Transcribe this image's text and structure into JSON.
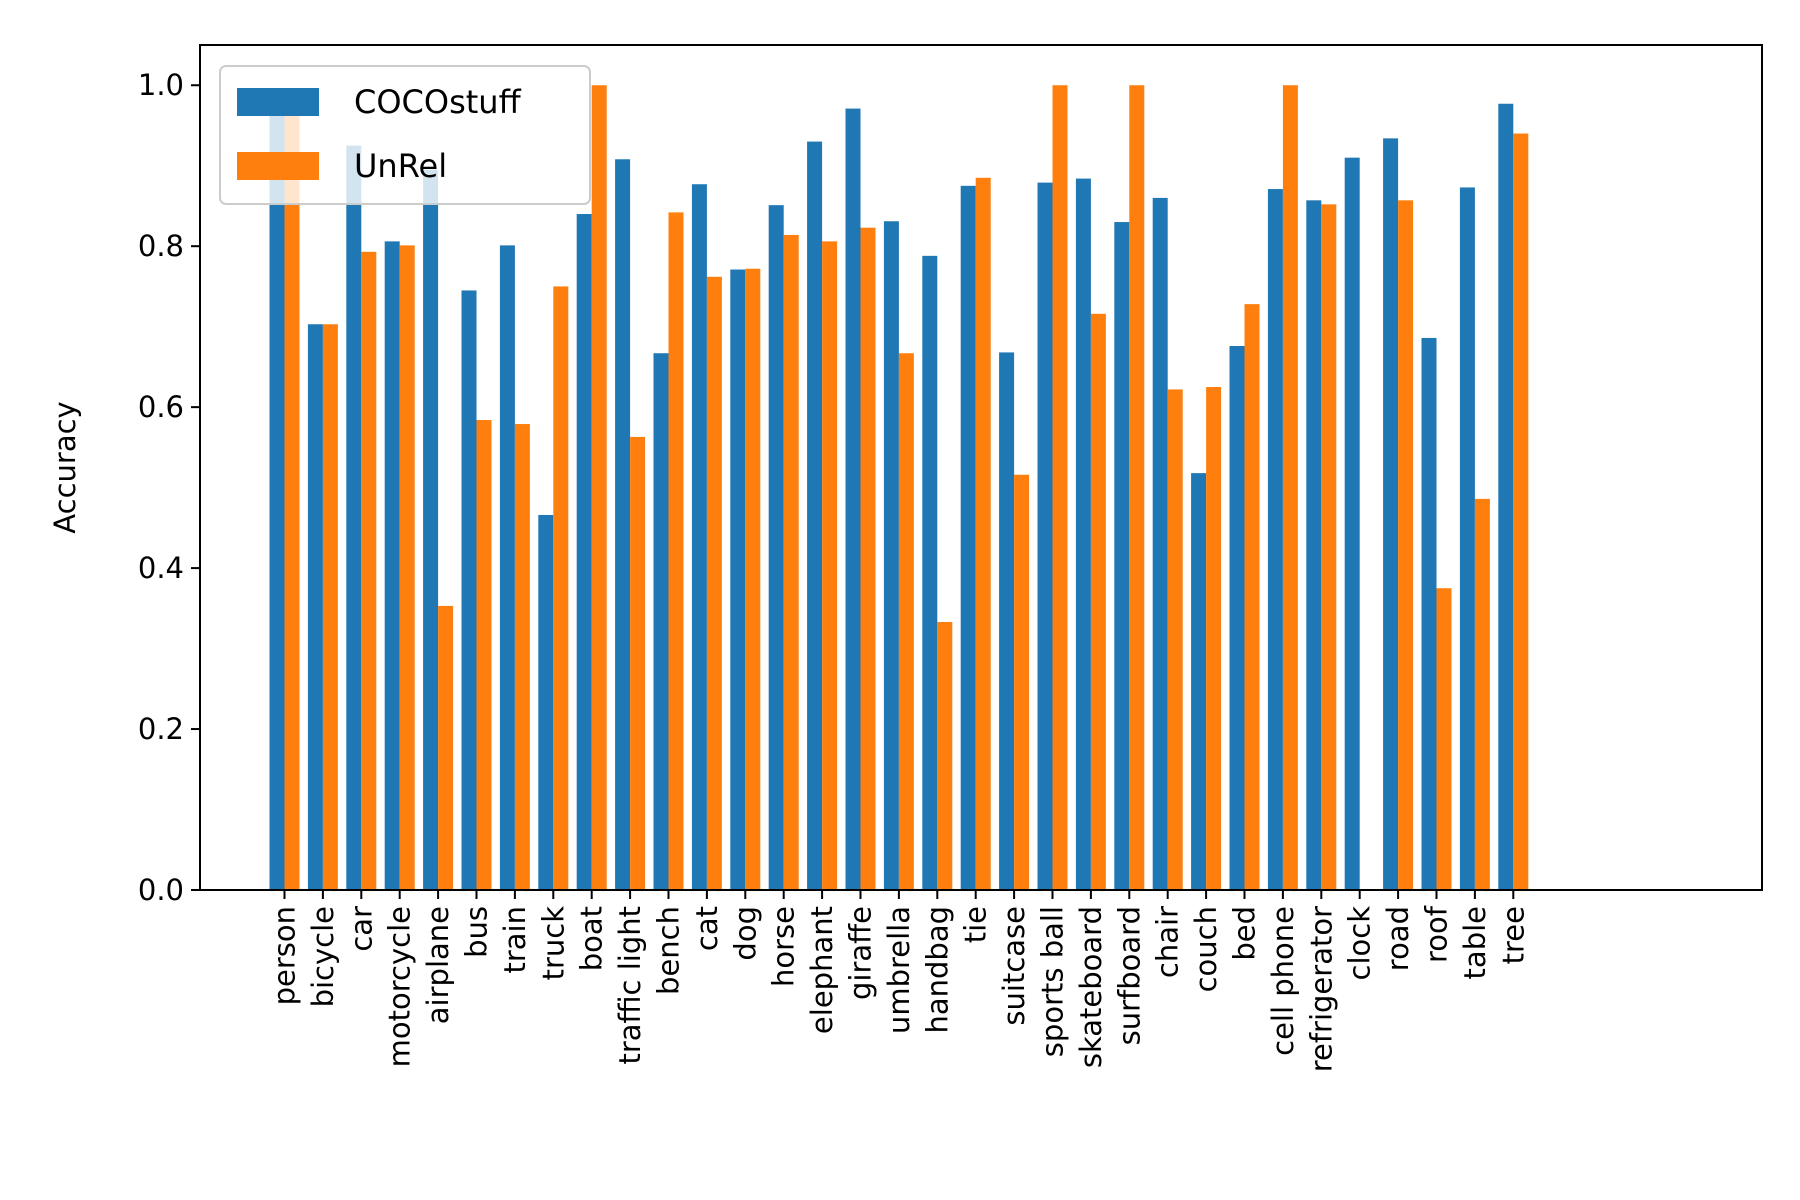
{
  "chart_data": {
    "type": "bar",
    "title": "",
    "xlabel": "",
    "ylabel": "Accuracy",
    "ylim": [
      0,
      1.05
    ],
    "yticks": [
      "0.0",
      "0.2",
      "0.4",
      "0.6",
      "0.8",
      "1.0"
    ],
    "grid": false,
    "legend_position": "top-left",
    "categories": [
      "person",
      "bicycle",
      "car",
      "motorcycle",
      "airplane",
      "bus",
      "train",
      "truck",
      "boat",
      "traffic light",
      "bench",
      "cat",
      "dog",
      "horse",
      "elephant",
      "giraffe",
      "umbrella",
      "handbag",
      "tie",
      "suitcase",
      "sports ball",
      "skateboard",
      "surfboard",
      "chair",
      "couch",
      "bed",
      "cell phone",
      "refrigerator",
      "clock",
      "road",
      "roof",
      "table",
      "tree"
    ],
    "series": [
      {
        "name": "COCOstuff",
        "color": "#1f77b4",
        "values": [
          0.975,
          0.703,
          0.925,
          0.806,
          0.895,
          0.745,
          0.801,
          0.466,
          0.84,
          0.908,
          0.667,
          0.877,
          0.771,
          0.851,
          0.93,
          0.971,
          0.831,
          0.788,
          0.875,
          0.668,
          0.879,
          0.884,
          0.83,
          0.86,
          0.518,
          0.676,
          0.871,
          0.857,
          0.91,
          0.934,
          0.686,
          0.873,
          0.977
        ]
      },
      {
        "name": "UnRel",
        "color": "#ff7f0e",
        "values": [
          0.965,
          0.703,
          0.793,
          0.801,
          0.353,
          0.584,
          0.579,
          0.75,
          1.0,
          0.563,
          0.842,
          0.762,
          0.772,
          0.814,
          0.806,
          0.823,
          0.667,
          0.333,
          0.885,
          0.516,
          1.0,
          0.716,
          1.0,
          0.622,
          0.625,
          0.728,
          1.0,
          0.852,
          0.0,
          0.857,
          0.375,
          0.486,
          0.94
        ]
      }
    ]
  }
}
